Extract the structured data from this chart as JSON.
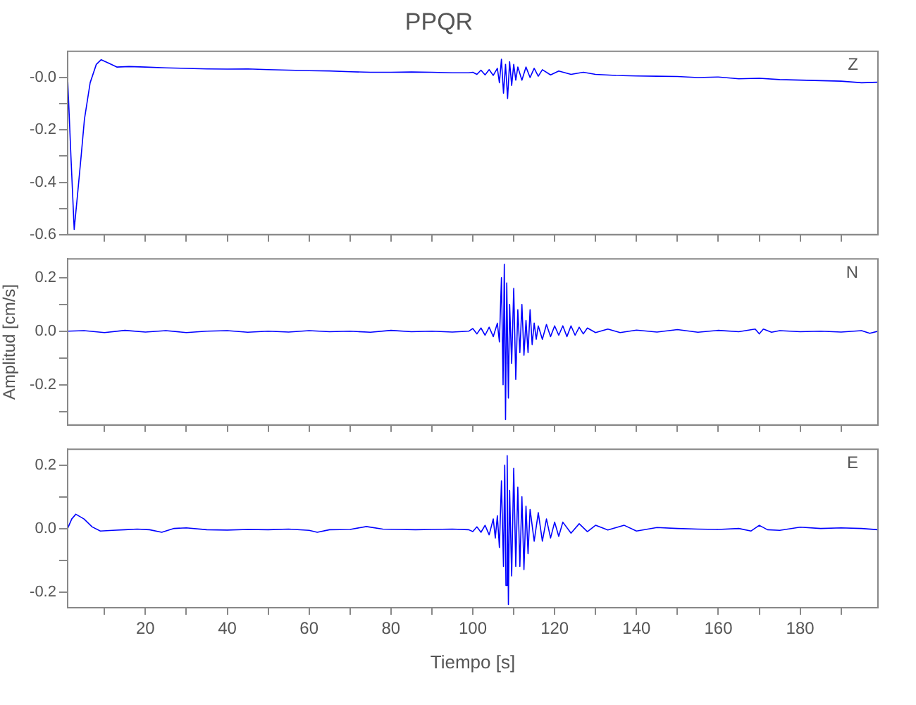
{
  "chart_data": [
    {
      "type": "line",
      "title": "PPQR",
      "annotations": [
        "Z"
      ],
      "tick_labels": "y",
      "xlim": [
        1,
        199
      ],
      "ylim": [
        -0.6,
        0.1
      ],
      "xticks": [
        {
          "value": 10,
          "label": null
        },
        {
          "value": 20,
          "label": null
        },
        {
          "value": 30,
          "label": null
        },
        {
          "value": 40,
          "label": null
        },
        {
          "value": 50,
          "label": null
        },
        {
          "value": 60,
          "label": null
        },
        {
          "value": 70,
          "label": null
        },
        {
          "value": 80,
          "label": null
        },
        {
          "value": 90,
          "label": null
        },
        {
          "value": 100,
          "label": null
        },
        {
          "value": 110,
          "label": null
        },
        {
          "value": 120,
          "label": null
        },
        {
          "value": 130,
          "label": null
        },
        {
          "value": 140,
          "label": null
        },
        {
          "value": 150,
          "label": null
        },
        {
          "value": 160,
          "label": null
        },
        {
          "value": 170,
          "label": null
        },
        {
          "value": 180,
          "label": null
        },
        {
          "value": 190,
          "label": null
        }
      ],
      "yticks": [
        -0.6,
        {
          "value": -0.5,
          "label": null
        },
        -0.4,
        {
          "value": -0.3,
          "label": null
        },
        -0.2,
        {
          "value": -0.1,
          "label": null
        },
        {
          "value": 0,
          "label": "-0.0"
        }
      ],
      "series": [
        {
          "color": "#0000ff",
          "x": [
            1,
            1.8,
            2.6,
            3.4,
            4.3,
            5.1,
            6.5,
            8,
            9.2,
            11,
            13,
            16,
            20,
            25,
            30,
            35,
            40,
            45,
            50,
            55,
            60,
            65,
            70,
            75,
            80,
            85,
            90,
            95,
            99,
            100,
            101,
            102,
            103,
            104,
            105,
            106,
            106.5,
            107,
            107.5,
            108,
            108.5,
            109,
            109.5,
            110,
            110.5,
            111,
            112,
            113,
            114,
            115,
            116,
            117,
            119,
            121,
            124,
            127,
            130,
            135,
            140,
            145,
            150,
            155,
            160,
            165,
            170,
            175,
            180,
            185,
            190,
            195,
            199
          ],
          "values": [
            0.0,
            -0.3,
            -0.58,
            -0.45,
            -0.3,
            -0.16,
            -0.02,
            0.05,
            0.068,
            0.055,
            0.04,
            0.042,
            0.04,
            0.037,
            0.035,
            0.033,
            0.032,
            0.033,
            0.03,
            0.028,
            0.026,
            0.025,
            0.022,
            0.02,
            0.02,
            0.021,
            0.02,
            0.018,
            0.018,
            0.02,
            0.012,
            0.028,
            0.01,
            0.03,
            0.008,
            0.035,
            -0.02,
            0.07,
            -0.06,
            0.05,
            -0.08,
            0.06,
            -0.03,
            0.05,
            -0.01,
            0.04,
            -0.01,
            0.04,
            0.0,
            0.035,
            0.005,
            0.03,
            0.01,
            0.025,
            0.012,
            0.02,
            0.012,
            0.008,
            0.006,
            0.005,
            0.004,
            0.0,
            0.002,
            -0.005,
            -0.003,
            -0.008,
            -0.01,
            -0.012,
            -0.014,
            -0.02,
            -0.018
          ]
        }
      ]
    },
    {
      "type": "line",
      "ylabel": "Amplitud [cm/s]",
      "annotations": [
        "N"
      ],
      "tick_labels": "y",
      "xlim": [
        1,
        199
      ],
      "ylim": [
        -0.35,
        0.27
      ],
      "xticks": [
        {
          "value": 10,
          "label": null
        },
        {
          "value": 20,
          "label": null
        },
        {
          "value": 30,
          "label": null
        },
        {
          "value": 40,
          "label": null
        },
        {
          "value": 50,
          "label": null
        },
        {
          "value": 60,
          "label": null
        },
        {
          "value": 70,
          "label": null
        },
        {
          "value": 80,
          "label": null
        },
        {
          "value": 90,
          "label": null
        },
        {
          "value": 100,
          "label": null
        },
        {
          "value": 110,
          "label": null
        },
        {
          "value": 120,
          "label": null
        },
        {
          "value": 130,
          "label": null
        },
        {
          "value": 140,
          "label": null
        },
        {
          "value": 150,
          "label": null
        },
        {
          "value": 160,
          "label": null
        },
        {
          "value": 170,
          "label": null
        },
        {
          "value": 180,
          "label": null
        },
        {
          "value": 190,
          "label": null
        }
      ],
      "yticks": [
        {
          "value": -0.3,
          "label": null
        },
        -0.2,
        {
          "value": -0.1,
          "label": null
        },
        {
          "value": 0,
          "label": "0.0"
        },
        {
          "value": 0.1,
          "label": null
        },
        0.2
      ],
      "series": [
        {
          "color": "#0000ff",
          "x": [
            1,
            5,
            10,
            15,
            20,
            25,
            30,
            35,
            40,
            45,
            50,
            55,
            60,
            65,
            70,
            75,
            80,
            85,
            90,
            95,
            99,
            100,
            101,
            102,
            103,
            104,
            105,
            106,
            106.5,
            107,
            107.4,
            107.7,
            108,
            108.3,
            108.7,
            109,
            109.5,
            110,
            110.5,
            111,
            111.5,
            112,
            112.5,
            113,
            113.5,
            114,
            114.5,
            115,
            115.5,
            116,
            117,
            118,
            119,
            120,
            121,
            122,
            123,
            124,
            125,
            126,
            127,
            128,
            130,
            133,
            136,
            140,
            145,
            150,
            155,
            160,
            165,
            169,
            170,
            171,
            173,
            175,
            180,
            185,
            190,
            195,
            197,
            199
          ],
          "values": [
            0.0,
            0.002,
            -0.005,
            0.003,
            -0.003,
            0.002,
            -0.005,
            0.0,
            0.002,
            -0.004,
            0.0,
            -0.003,
            0.002,
            -0.002,
            0.0,
            -0.004,
            0.003,
            -0.002,
            0.0,
            -0.003,
            0.0,
            0.01,
            -0.01,
            0.012,
            -0.015,
            0.015,
            -0.02,
            0.03,
            -0.04,
            0.2,
            -0.2,
            0.25,
            -0.33,
            0.18,
            -0.25,
            0.1,
            -0.12,
            0.16,
            -0.18,
            0.08,
            -0.08,
            0.1,
            -0.09,
            0.04,
            -0.08,
            0.08,
            -0.05,
            0.03,
            -0.03,
            0.02,
            -0.03,
            0.025,
            -0.02,
            0.02,
            -0.015,
            0.02,
            -0.02,
            0.02,
            -0.015,
            0.015,
            -0.01,
            0.012,
            -0.005,
            0.008,
            -0.005,
            0.004,
            -0.003,
            0.006,
            -0.004,
            0.003,
            -0.002,
            0.008,
            -0.01,
            0.008,
            -0.004,
            0.002,
            -0.002,
            0.0,
            -0.003,
            0.002,
            -0.008,
            0.0
          ]
        }
      ]
    },
    {
      "type": "line",
      "xlabel": "Tiempo [s]",
      "annotations": [
        "E"
      ],
      "xlim": [
        1,
        199
      ],
      "ylim": [
        -0.25,
        0.25
      ],
      "xticks": [
        {
          "value": 10,
          "label": null
        },
        20,
        {
          "value": 30,
          "label": null
        },
        40,
        {
          "value": 50,
          "label": null
        },
        60,
        {
          "value": 70,
          "label": null
        },
        80,
        {
          "value": 90,
          "label": null
        },
        100,
        {
          "value": 110,
          "label": null
        },
        120,
        {
          "value": 130,
          "label": null
        },
        140,
        {
          "value": 150,
          "label": null
        },
        160,
        {
          "value": 170,
          "label": null
        },
        180,
        {
          "value": 190,
          "label": null
        }
      ],
      "yticks": [
        -0.2,
        {
          "value": -0.1,
          "label": null
        },
        {
          "value": 0,
          "label": "0.0"
        },
        {
          "value": 0.1,
          "label": null
        },
        0.2
      ],
      "series": [
        {
          "color": "#0000ff",
          "x": [
            1,
            2,
            3,
            5,
            7,
            9,
            12,
            15,
            18,
            21,
            24,
            27,
            30,
            35,
            40,
            45,
            50,
            55,
            60,
            62,
            65,
            70,
            74,
            78,
            82,
            86,
            90,
            95,
            99,
            100,
            101,
            102,
            103,
            104,
            105,
            105.5,
            106,
            106.5,
            107,
            107.5,
            107.8,
            108.1,
            108.4,
            108.7,
            109,
            109.5,
            110,
            110.5,
            111,
            111.5,
            112,
            112.5,
            113,
            113.5,
            114,
            115,
            116,
            117,
            118,
            119,
            120,
            121,
            122,
            124,
            126,
            128,
            130,
            133,
            137,
            140,
            145,
            150,
            155,
            160,
            165,
            168,
            170,
            172,
            175,
            180,
            185,
            190,
            195,
            199
          ],
          "values": [
            0.0,
            0.03,
            0.045,
            0.03,
            0.005,
            -0.008,
            -0.006,
            -0.004,
            -0.002,
            -0.004,
            -0.012,
            0.0,
            0.002,
            -0.004,
            -0.005,
            -0.003,
            -0.004,
            -0.002,
            -0.006,
            -0.012,
            -0.004,
            -0.003,
            0.006,
            -0.002,
            -0.003,
            -0.004,
            -0.003,
            -0.002,
            -0.004,
            -0.01,
            0.005,
            -0.012,
            0.01,
            -0.02,
            0.03,
            -0.03,
            0.04,
            -0.06,
            0.15,
            -0.12,
            0.2,
            -0.18,
            0.23,
            -0.24,
            0.12,
            -0.15,
            0.19,
            -0.12,
            0.13,
            -0.12,
            0.1,
            -0.13,
            0.07,
            -0.08,
            0.06,
            -0.04,
            0.05,
            -0.04,
            0.03,
            -0.03,
            0.02,
            -0.025,
            0.02,
            -0.015,
            0.015,
            -0.01,
            0.01,
            -0.005,
            0.01,
            -0.008,
            0.003,
            0.0,
            -0.002,
            -0.003,
            0.0,
            -0.008,
            0.01,
            -0.004,
            -0.006,
            0.004,
            0.0,
            0.002,
            0.0,
            -0.004
          ]
        }
      ]
    }
  ]
}
